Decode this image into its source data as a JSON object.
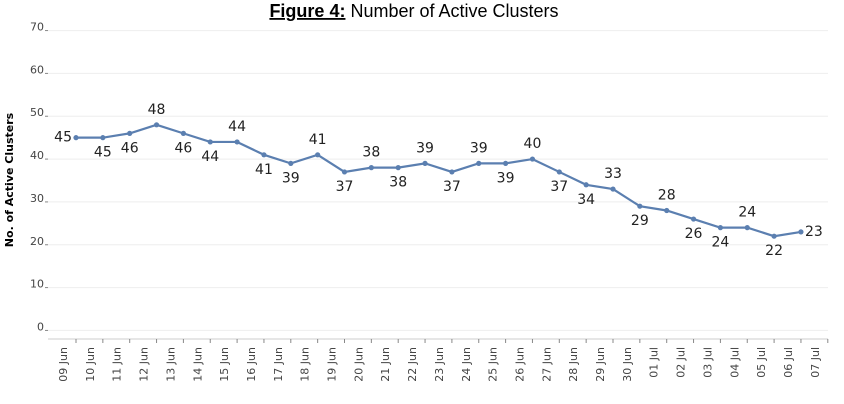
{
  "chart_data": {
    "type": "line",
    "title_label": "Figure 4:",
    "title": "Number of Active Clusters",
    "ylabel": "No. of Active Clusters",
    "categories": [
      "09 Jun",
      "10 Jun",
      "11 Jun",
      "12 Jun",
      "13 Jun",
      "14 Jun",
      "15 Jun",
      "16 Jun",
      "17 Jun",
      "18 Jun",
      "19 Jun",
      "20 Jun",
      "21 Jun",
      "22 Jun",
      "23 Jun",
      "24 Jun",
      "25 Jun",
      "26 Jun",
      "27 Jun",
      "28 Jun",
      "29 Jun",
      "30 Jun",
      "01 Jul",
      "02 Jul",
      "03 Jul",
      "04 Jul",
      "05 Jul",
      "06 Jul",
      "07 Jul"
    ],
    "series": [
      {
        "name": "Active Clusters",
        "color": "#5b7fb0",
        "values": [
          45,
          45,
          46,
          48,
          46,
          44,
          44,
          41,
          39,
          41,
          37,
          38,
          38,
          39,
          37,
          39,
          39,
          40,
          37,
          34,
          33,
          29,
          28,
          26,
          24,
          24,
          22,
          23,
          null
        ]
      }
    ],
    "ylim": [
      -2,
      72
    ],
    "yticks": [
      0,
      10,
      20,
      30,
      40,
      50,
      60,
      70
    ],
    "grid": true
  }
}
